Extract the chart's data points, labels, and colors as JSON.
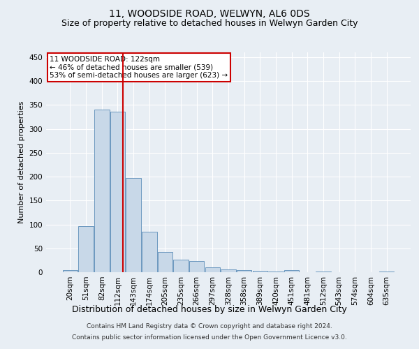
{
  "title": "11, WOODSIDE ROAD, WELWYN, AL6 0DS",
  "subtitle": "Size of property relative to detached houses in Welwyn Garden City",
  "xlabel": "Distribution of detached houses by size in Welwyn Garden City",
  "ylabel": "Number of detached properties",
  "footer_line1": "Contains HM Land Registry data © Crown copyright and database right 2024.",
  "footer_line2": "Contains public sector information licensed under the Open Government Licence v3.0.",
  "bar_labels": [
    "20sqm",
    "51sqm",
    "82sqm",
    "112sqm",
    "143sqm",
    "174sqm",
    "205sqm",
    "235sqm",
    "266sqm",
    "297sqm",
    "328sqm",
    "358sqm",
    "389sqm",
    "420sqm",
    "451sqm",
    "481sqm",
    "512sqm",
    "543sqm",
    "574sqm",
    "604sqm",
    "635sqm"
  ],
  "bar_values": [
    5,
    97,
    340,
    336,
    197,
    84,
    42,
    26,
    24,
    10,
    6,
    4,
    3,
    1,
    4,
    0,
    1,
    0,
    0,
    0,
    2
  ],
  "bar_color": "#c8d8e8",
  "bar_edge_color": "#5b8db8",
  "highlight_line_color": "#cc0000",
  "annotation_text": "11 WOODSIDE ROAD: 122sqm\n← 46% of detached houses are smaller (539)\n53% of semi-detached houses are larger (623) →",
  "annotation_box_color": "#ffffff",
  "annotation_box_edge_color": "#cc0000",
  "ylim": [
    0,
    460
  ],
  "yticks": [
    0,
    50,
    100,
    150,
    200,
    250,
    300,
    350,
    400,
    450
  ],
  "background_color": "#e8eef4",
  "plot_background": "#e8eef4",
  "grid_color": "#ffffff",
  "title_fontsize": 10,
  "subtitle_fontsize": 9,
  "ylabel_fontsize": 8,
  "xlabel_fontsize": 9,
  "tick_fontsize": 7.5,
  "footer_fontsize": 6.5,
  "red_line_x": 3.32
}
